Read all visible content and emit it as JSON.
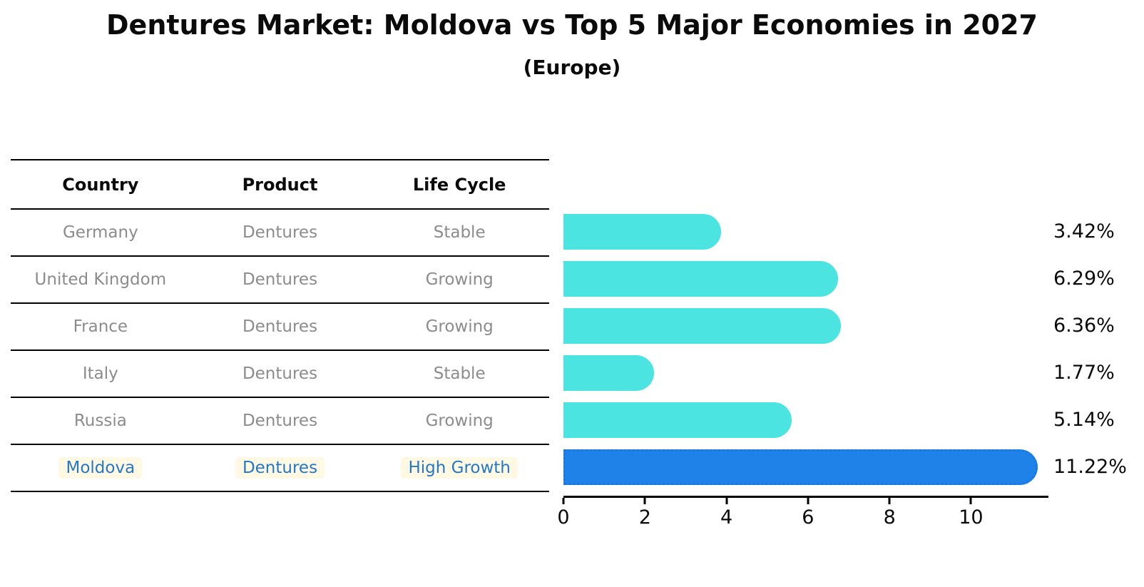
{
  "title": "Dentures Market: Moldova vs Top 5 Major Economies in 2027",
  "subtitle": "(Europe)",
  "table": {
    "headers": [
      "Country",
      "Product",
      "Life Cycle"
    ],
    "rows": [
      {
        "country": "Germany",
        "product": "Dentures",
        "life_cycle": "Stable"
      },
      {
        "country": "United Kingdom",
        "product": "Dentures",
        "life_cycle": "Growing"
      },
      {
        "country": "France",
        "product": "Dentures",
        "life_cycle": "Growing"
      },
      {
        "country": "Italy",
        "product": "Dentures",
        "life_cycle": "Stable"
      },
      {
        "country": "Russia",
        "product": "Dentures",
        "life_cycle": "Growing"
      },
      {
        "country": "Moldova",
        "product": "Dentures",
        "life_cycle": "High Growth"
      }
    ],
    "text_color": "#8c8c8c",
    "highlight_text_color": "#2478C8",
    "highlight_bg_color": "#FFF9E3"
  },
  "chart_data": {
    "type": "bar",
    "orientation": "horizontal",
    "title": "Dentures Market: Moldova vs Top 5 Major Economies in 2027",
    "subtitle": "(Europe)",
    "categories": [
      "Germany",
      "United Kingdom",
      "France",
      "Italy",
      "Russia",
      "Moldova"
    ],
    "values": [
      3.42,
      6.29,
      6.36,
      1.77,
      5.14,
      11.22
    ],
    "labels": [
      "3.42%",
      "6.29%",
      "6.36%",
      "1.77%",
      "5.14%",
      "11.22%"
    ],
    "x_ticks": [
      0,
      2,
      4,
      6,
      8,
      10
    ],
    "xlim": [
      0,
      11.9
    ],
    "grid": false,
    "bar_color": "#4BE4E0",
    "highlight_index": 5,
    "highlight_bar_color": "#1E82E8",
    "highlight_bar_border_color": "#1C78DC"
  }
}
